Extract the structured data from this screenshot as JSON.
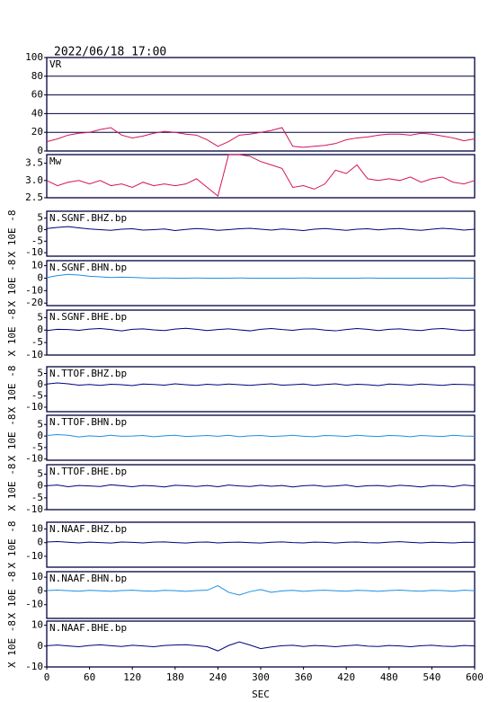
{
  "chart_data": [
    {
      "type": "line",
      "title": "2022/06/18 17:00",
      "label": "VR",
      "color": "#d4145a",
      "grid": true,
      "xlim": [
        0,
        600
      ],
      "ylim": [
        0,
        100
      ],
      "yticks": [
        0,
        20,
        40,
        60,
        80,
        100
      ],
      "x": [
        0,
        15,
        30,
        45,
        60,
        75,
        90,
        105,
        120,
        135,
        150,
        165,
        180,
        195,
        210,
        225,
        240,
        255,
        270,
        285,
        300,
        315,
        330,
        345,
        360,
        375,
        390,
        405,
        420,
        435,
        450,
        465,
        480,
        495,
        510,
        525,
        540,
        555,
        570,
        585,
        600
      ],
      "values": [
        10,
        13,
        17,
        19,
        20,
        23,
        25,
        17,
        14,
        16,
        19,
        21,
        20,
        18,
        17,
        12,
        5,
        10,
        17,
        18,
        20,
        22,
        25,
        5,
        4,
        5,
        6,
        8,
        12,
        14,
        15,
        17,
        18,
        18,
        17,
        19,
        18,
        16,
        14,
        11,
        13
      ]
    },
    {
      "type": "line",
      "label": "Mw",
      "color": "#d4145a",
      "xlim": [
        0,
        600
      ],
      "ylim": [
        2.5,
        3.75
      ],
      "yticks": [
        2.5,
        {
          "value": 3,
          "label": "3.0"
        },
        3.5
      ],
      "x": [
        0,
        15,
        30,
        45,
        60,
        75,
        90,
        105,
        120,
        135,
        150,
        165,
        180,
        195,
        210,
        225,
        240,
        255,
        270,
        285,
        300,
        315,
        330,
        345,
        360,
        375,
        390,
        405,
        420,
        435,
        450,
        465,
        480,
        495,
        510,
        525,
        540,
        555,
        570,
        585,
        600
      ],
      "values": [
        3.0,
        2.85,
        2.95,
        3.0,
        2.9,
        3.0,
        2.85,
        2.9,
        2.8,
        2.95,
        2.85,
        2.9,
        2.85,
        2.9,
        3.05,
        2.8,
        2.55,
        3.75,
        3.75,
        3.7,
        3.55,
        3.45,
        3.35,
        2.8,
        2.85,
        2.75,
        2.9,
        3.3,
        3.2,
        3.45,
        3.05,
        3.0,
        3.05,
        3.0,
        3.1,
        2.95,
        3.05,
        3.1,
        2.95,
        2.9,
        3.0
      ]
    },
    {
      "type": "line",
      "label": "N.SGNF.BHZ.bp",
      "ylabel": "X 10E -8",
      "color": "#000080",
      "xlim": [
        0,
        600
      ],
      "ylim": [
        -11.5,
        8
      ],
      "yticks": [
        5,
        0,
        -5,
        -10
      ],
      "x": [
        0,
        15,
        30,
        45,
        60,
        75,
        90,
        105,
        120,
        135,
        150,
        165,
        180,
        195,
        210,
        225,
        240,
        255,
        270,
        285,
        300,
        315,
        330,
        345,
        360,
        375,
        390,
        405,
        420,
        435,
        450,
        465,
        480,
        495,
        510,
        525,
        540,
        555,
        570,
        585,
        600
      ],
      "values": [
        0.5,
        1,
        1.3,
        0.8,
        0.3,
        0,
        -0.3,
        0.2,
        0.4,
        -0.2,
        0,
        0.3,
        -0.4,
        0.1,
        0.5,
        0.2,
        -0.3,
        0,
        0.4,
        0.6,
        0.2,
        -0.2,
        0.3,
        0,
        -0.4,
        0.2,
        0.5,
        0.1,
        -0.3,
        0.2,
        0.4,
        -0.1,
        0.3,
        0.5,
        0,
        -0.3,
        0.2,
        0.6,
        0.3,
        -0.2,
        0.2
      ]
    },
    {
      "type": "line",
      "label": "N.SGNF.BHN.bp",
      "ylabel": "X 10E -8",
      "color": "#1e8fe0",
      "xlim": [
        0,
        600
      ],
      "ylim": [
        -22,
        14
      ],
      "yticks": [
        10,
        0,
        -10,
        -20
      ],
      "x": [
        0,
        15,
        30,
        45,
        60,
        75,
        90,
        105,
        120,
        135,
        150,
        165,
        180,
        195,
        210,
        225,
        240,
        255,
        270,
        285,
        300,
        315,
        330,
        345,
        360,
        375,
        390,
        405,
        420,
        435,
        450,
        465,
        480,
        495,
        510,
        525,
        540,
        555,
        570,
        585,
        600
      ],
      "values": [
        0.5,
        2,
        3,
        2.5,
        1.5,
        1,
        0.5,
        0.8,
        0.6,
        0.2,
        0,
        0.1,
        0,
        0,
        0.1,
        0,
        0,
        0,
        0.1,
        0,
        0,
        0,
        0,
        0,
        0.1,
        0,
        0,
        0,
        0,
        0,
        0.1,
        0,
        0,
        0,
        0,
        0,
        0,
        0,
        0.1,
        0,
        0
      ]
    },
    {
      "type": "line",
      "label": "N.SGNF.BHE.bp",
      "ylabel": "X 10E -8",
      "color": "#000080",
      "xlim": [
        0,
        600
      ],
      "ylim": [
        -10,
        8
      ],
      "yticks": [
        5,
        0,
        -5,
        -10
      ],
      "x": [
        0,
        15,
        30,
        45,
        60,
        75,
        90,
        105,
        120,
        135,
        150,
        165,
        180,
        195,
        210,
        225,
        240,
        255,
        270,
        285,
        300,
        315,
        330,
        345,
        360,
        375,
        390,
        405,
        420,
        435,
        450,
        465,
        480,
        495,
        510,
        525,
        540,
        555,
        570,
        585,
        600
      ],
      "values": [
        -0.2,
        0.3,
        0.2,
        -0.1,
        0.4,
        0.6,
        0.2,
        -0.3,
        0.3,
        0.5,
        0.1,
        -0.2,
        0.4,
        0.7,
        0.3,
        -0.2,
        0.2,
        0.5,
        0.1,
        -0.3,
        0.3,
        0.6,
        0.2,
        -0.1,
        0.4,
        0.5,
        0,
        -0.3,
        0.2,
        0.6,
        0.3,
        -0.2,
        0.3,
        0.5,
        0.1,
        -0.2,
        0.4,
        0.6,
        0.2,
        -0.2,
        0.1
      ]
    },
    {
      "type": "line",
      "label": "N.TTOF.BHZ.bp",
      "ylabel": "X 10E -8",
      "color": "#000080",
      "xlim": [
        0,
        600
      ],
      "ylim": [
        -12,
        8
      ],
      "yticks": [
        5,
        0,
        -5,
        -10
      ],
      "x": [
        0,
        15,
        30,
        45,
        60,
        75,
        90,
        105,
        120,
        135,
        150,
        165,
        180,
        195,
        210,
        225,
        240,
        255,
        270,
        285,
        300,
        315,
        330,
        345,
        360,
        375,
        390,
        405,
        420,
        435,
        450,
        465,
        480,
        495,
        510,
        525,
        540,
        555,
        570,
        585,
        600
      ],
      "values": [
        0.3,
        0.8,
        0.4,
        -0.2,
        0.1,
        -0.3,
        0.2,
        0,
        -0.4,
        0.3,
        0.1,
        -0.2,
        0.4,
        0,
        -0.3,
        0.2,
        -0.1,
        0.3,
        0,
        -0.3,
        0.1,
        0.4,
        -0.2,
        0,
        0.3,
        -0.3,
        0.1,
        0.4,
        -0.2,
        0.2,
        0,
        -0.4,
        0.3,
        0.1,
        -0.2,
        0.3,
        0,
        -0.3,
        0.2,
        0.1,
        -0.1
      ]
    },
    {
      "type": "line",
      "label": "N.TTOF.BHN.bp",
      "ylabel": "X 10E -8",
      "color": "#1e8fe0",
      "xlim": [
        0,
        600
      ],
      "ylim": [
        -10.5,
        9
      ],
      "yticks": [
        5,
        0,
        -5,
        -10
      ],
      "x": [
        0,
        15,
        30,
        45,
        60,
        75,
        90,
        105,
        120,
        135,
        150,
        165,
        180,
        195,
        210,
        225,
        240,
        255,
        270,
        285,
        300,
        315,
        330,
        345,
        360,
        375,
        390,
        405,
        420,
        435,
        450,
        465,
        480,
        495,
        510,
        525,
        540,
        555,
        570,
        585,
        600
      ],
      "values": [
        0.2,
        0.6,
        0.3,
        -0.4,
        0.1,
        -0.2,
        0.3,
        -0.1,
        0,
        0.2,
        -0.3,
        0.1,
        0.3,
        -0.2,
        0,
        0.2,
        -0.1,
        0.3,
        -0.3,
        0.1,
        0.2,
        -0.2,
        0,
        0.3,
        -0.1,
        -0.3,
        0.2,
        0.1,
        -0.2,
        0.3,
        0,
        -0.2,
        0.2,
        0.1,
        -0.3,
        0.2,
        0,
        -0.2,
        0.3,
        0,
        -0.1
      ]
    },
    {
      "type": "line",
      "label": "N.TTOF.BHE.bp",
      "ylabel": "X 10E -8",
      "color": "#000080",
      "xlim": [
        0,
        600
      ],
      "ylim": [
        -10,
        9
      ],
      "yticks": [
        5,
        0,
        -5,
        -10
      ],
      "x": [
        0,
        15,
        30,
        45,
        60,
        75,
        90,
        105,
        120,
        135,
        150,
        165,
        180,
        195,
        210,
        225,
        240,
        255,
        270,
        285,
        300,
        315,
        330,
        345,
        360,
        375,
        390,
        405,
        420,
        435,
        450,
        465,
        480,
        495,
        510,
        525,
        540,
        555,
        570,
        585,
        600
      ],
      "values": [
        0.1,
        0.4,
        -0.3,
        0.2,
        0,
        -0.2,
        0.5,
        0.1,
        -0.3,
        0.2,
        0,
        -0.4,
        0.3,
        0.1,
        -0.2,
        0.2,
        -0.3,
        0.4,
        0,
        -0.2,
        0.3,
        -0.1,
        0.2,
        -0.4,
        0.1,
        0.3,
        -0.2,
        0,
        0.4,
        -0.3,
        0.1,
        0.2,
        -0.2,
        0.3,
        0,
        -0.4,
        0.2,
        0.1,
        -0.3,
        0.4,
        0
      ]
    },
    {
      "type": "line",
      "label": "N.NAAF.BHZ.bp",
      "ylabel": "X 10E -8",
      "color": "#000080",
      "xlim": [
        0,
        600
      ],
      "ylim": [
        -18,
        15
      ],
      "yticks": [
        10,
        0,
        -10
      ],
      "x": [
        0,
        15,
        30,
        45,
        60,
        75,
        90,
        105,
        120,
        135,
        150,
        165,
        180,
        195,
        210,
        225,
        240,
        255,
        270,
        285,
        300,
        315,
        330,
        345,
        360,
        375,
        390,
        405,
        420,
        435,
        450,
        465,
        480,
        495,
        510,
        525,
        540,
        555,
        570,
        585,
        600
      ],
      "values": [
        0.5,
        0.8,
        0.3,
        -0.2,
        0.4,
        0.1,
        -0.3,
        0.5,
        0.2,
        -0.2,
        0.4,
        0.6,
        0.1,
        -0.3,
        0.3,
        0.5,
        -0.2,
        0.2,
        0.4,
        0,
        -0.3,
        0.3,
        0.6,
        0.1,
        -0.2,
        0.4,
        0.2,
        -0.3,
        0.3,
        0.5,
        0,
        -0.2,
        0.4,
        0.7,
        0.2,
        -0.2,
        0.3,
        0.1,
        -0.2,
        0.3,
        0.2
      ]
    },
    {
      "type": "line",
      "label": "N.NAAF.BHN.bp",
      "ylabel": "X 10E -8",
      "color": "#1e8fe0",
      "xlim": [
        0,
        600
      ],
      "ylim": [
        -20,
        14
      ],
      "yticks": [
        10,
        0,
        -10
      ],
      "x": [
        0,
        15,
        30,
        45,
        60,
        75,
        90,
        105,
        120,
        135,
        150,
        165,
        180,
        195,
        210,
        225,
        240,
        255,
        270,
        285,
        300,
        315,
        330,
        345,
        360,
        375,
        390,
        405,
        420,
        435,
        450,
        465,
        480,
        495,
        510,
        525,
        540,
        555,
        570,
        585,
        600
      ],
      "values": [
        0.3,
        0.6,
        0.2,
        -0.2,
        0.4,
        0.1,
        -0.3,
        0.3,
        0.5,
        0,
        -0.2,
        0.4,
        0.2,
        -0.3,
        0.3,
        0.5,
        3.8,
        -1,
        -3,
        -0.5,
        1,
        -1,
        0,
        0.4,
        -0.3,
        0.3,
        0.5,
        0.1,
        -0.2,
        0.4,
        0.2,
        -0.3,
        0.3,
        0.6,
        0.1,
        -0.2,
        0.4,
        0.3,
        -0.2,
        0.5,
        0.2
      ]
    },
    {
      "type": "line",
      "label": "N.NAAF.BHE.bp",
      "ylabel": "X 10E -8",
      "color": "#000080",
      "xlabel": "SEC",
      "xticks": [
        0,
        60,
        120,
        180,
        240,
        300,
        360,
        420,
        480,
        540,
        600
      ],
      "xlim": [
        0,
        600
      ],
      "ylim": [
        -10,
        12
      ],
      "yticks": [
        10,
        0,
        -10
      ],
      "x": [
        0,
        15,
        30,
        45,
        60,
        75,
        90,
        105,
        120,
        135,
        150,
        165,
        180,
        195,
        210,
        225,
        240,
        255,
        270,
        285,
        300,
        315,
        330,
        345,
        360,
        375,
        390,
        405,
        420,
        435,
        450,
        465,
        480,
        495,
        510,
        525,
        540,
        555,
        570,
        585,
        600
      ],
      "values": [
        0.2,
        0.5,
        0.1,
        -0.3,
        0.3,
        0.6,
        0.2,
        -0.2,
        0.4,
        0.1,
        -0.3,
        0.3,
        0.5,
        0.7,
        0.2,
        -0.3,
        -2.3,
        0.3,
        2,
        0.5,
        -1.2,
        -0.4,
        0.2,
        0.4,
        -0.2,
        0.3,
        0.1,
        -0.3,
        0.2,
        0.5,
        0,
        -0.2,
        0.3,
        0.1,
        -0.3,
        0.2,
        0.4,
        0,
        -0.2,
        0.3,
        0.1
      ]
    }
  ]
}
